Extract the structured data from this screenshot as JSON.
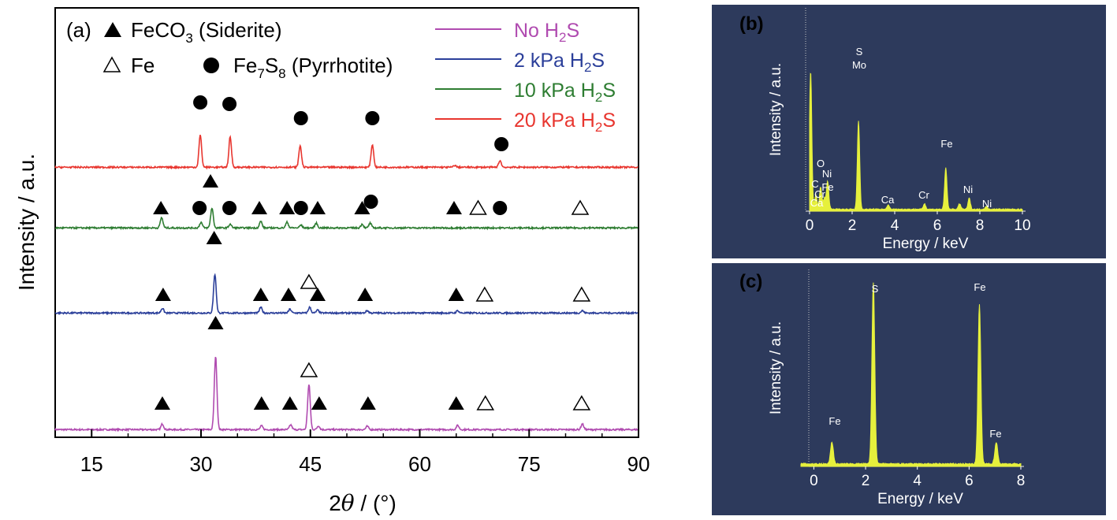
{
  "chart_data": [
    {
      "panel_label": "(a)",
      "type": "line",
      "xlabel_prefix": "2",
      "xlabel_theta": "θ",
      "xlabel_suffix": " / (°)",
      "ylabel": "Intensity / a.u.",
      "xlim": [
        10,
        90
      ],
      "xticks": [
        "15",
        "30",
        "45",
        "60",
        "75",
        "90"
      ],
      "xtick_values": [
        15,
        30,
        45,
        60,
        75,
        90
      ],
      "legend_placement": "top-right",
      "series": [
        {
          "name": "No H₂S",
          "color": "#b04bb0",
          "offset": 0,
          "peaks": [
            [
              24.7,
              12
            ],
            [
              32.0,
              155
            ],
            [
              38.3,
              8
            ],
            [
              42.3,
              10
            ],
            [
              44.8,
              95
            ],
            [
              46.1,
              8
            ],
            [
              52.8,
              7
            ],
            [
              65.2,
              9
            ],
            [
              82.3,
              12
            ]
          ]
        },
        {
          "name": "2 kPa H₂S",
          "color": "#2b3f9a",
          "offset": 1,
          "peaks": [
            [
              24.7,
              10
            ],
            [
              31.9,
              82
            ],
            [
              38.2,
              12
            ],
            [
              42.2,
              8
            ],
            [
              44.9,
              12
            ],
            [
              46.0,
              6
            ],
            [
              52.8,
              5
            ],
            [
              65.2,
              5
            ],
            [
              82.3,
              5
            ]
          ]
        },
        {
          "name": "10 kPa H₂S",
          "color": "#2e7d32",
          "offset": 2,
          "peaks": [
            [
              24.6,
              22
            ],
            [
              30.0,
              12
            ],
            [
              31.5,
              42
            ],
            [
              34.0,
              8
            ],
            [
              38.2,
              14
            ],
            [
              41.8,
              12
            ],
            [
              43.7,
              6
            ],
            [
              45.8,
              10
            ],
            [
              52.1,
              8
            ],
            [
              53.2,
              10
            ]
          ]
        },
        {
          "name": "20 kPa H₂S",
          "color": "#e8362f",
          "offset": 3,
          "peaks": [
            [
              29.9,
              68
            ],
            [
              34.0,
              64
            ],
            [
              43.6,
              46
            ],
            [
              53.5,
              48
            ],
            [
              71.0,
              14
            ],
            [
              64.8,
              4
            ]
          ]
        }
      ],
      "legend_phases": [
        {
          "symbol": "filled-triangle",
          "name": "FeCO",
          "sub": "3",
          "tail": " (Siderite)"
        },
        {
          "symbol": "open-triangle",
          "name": "Fe",
          "sub": "",
          "tail": ""
        },
        {
          "symbol": "filled-circle",
          "name": "Fe",
          "sub": "7",
          "name2": "S",
          "sub2": "8",
          "tail": " (Pyrrhotite)"
        }
      ],
      "markers": [
        {
          "series": 0,
          "x": 24.7,
          "type": "filled-triangle"
        },
        {
          "series": 0,
          "x": 32.0,
          "type": "filled-triangle"
        },
        {
          "series": 0,
          "x": 38.3,
          "type": "filled-triangle"
        },
        {
          "series": 0,
          "x": 42.2,
          "type": "filled-triangle"
        },
        {
          "series": 0,
          "x": 44.8,
          "type": "open-triangle"
        },
        {
          "series": 0,
          "x": 46.2,
          "type": "filled-triangle"
        },
        {
          "series": 0,
          "x": 52.9,
          "type": "filled-triangle"
        },
        {
          "series": 0,
          "x": 65.0,
          "type": "filled-triangle"
        },
        {
          "series": 0,
          "x": 69.0,
          "type": "open-triangle"
        },
        {
          "series": 0,
          "x": 82.2,
          "type": "open-triangle"
        },
        {
          "series": 1,
          "x": 24.8,
          "type": "filled-triangle"
        },
        {
          "series": 1,
          "x": 31.8,
          "type": "filled-triangle"
        },
        {
          "series": 1,
          "x": 38.2,
          "type": "filled-triangle"
        },
        {
          "series": 1,
          "x": 42.0,
          "type": "filled-triangle"
        },
        {
          "series": 1,
          "x": 44.8,
          "type": "open-triangle"
        },
        {
          "series": 1,
          "x": 46.0,
          "type": "filled-triangle"
        },
        {
          "series": 1,
          "x": 52.5,
          "type": "filled-triangle"
        },
        {
          "series": 1,
          "x": 65.0,
          "type": "filled-triangle"
        },
        {
          "series": 1,
          "x": 68.9,
          "type": "open-triangle"
        },
        {
          "series": 1,
          "x": 82.2,
          "type": "open-triangle"
        },
        {
          "series": 2,
          "x": 24.5,
          "type": "filled-triangle"
        },
        {
          "series": 2,
          "x": 29.8,
          "type": "filled-circle"
        },
        {
          "series": 2,
          "x": 31.3,
          "type": "filled-triangle"
        },
        {
          "series": 2,
          "x": 33.9,
          "type": "filled-circle"
        },
        {
          "series": 2,
          "x": 38.0,
          "type": "filled-triangle"
        },
        {
          "series": 2,
          "x": 41.8,
          "type": "filled-triangle"
        },
        {
          "series": 2,
          "x": 43.7,
          "type": "filled-circle"
        },
        {
          "series": 2,
          "x": 46.0,
          "type": "filled-triangle"
        },
        {
          "series": 2,
          "x": 52.1,
          "type": "filled-triangle"
        },
        {
          "series": 2,
          "x": 53.3,
          "type": "filled-circle"
        },
        {
          "series": 2,
          "x": 64.7,
          "type": "filled-triangle"
        },
        {
          "series": 2,
          "x": 68.0,
          "type": "open-triangle"
        },
        {
          "series": 2,
          "x": 71.0,
          "type": "filled-circle"
        },
        {
          "series": 2,
          "x": 82.0,
          "type": "open-triangle"
        },
        {
          "series": 3,
          "x": 29.9,
          "type": "filled-circle"
        },
        {
          "series": 3,
          "x": 33.9,
          "type": "filled-circle"
        },
        {
          "series": 3,
          "x": 43.7,
          "type": "filled-circle"
        },
        {
          "series": 3,
          "x": 53.5,
          "type": "filled-circle"
        },
        {
          "series": 3,
          "x": 71.2,
          "type": "filled-circle"
        }
      ]
    },
    {
      "panel_label": "(b)",
      "type": "line",
      "xlabel": "Energy / keV",
      "ylabel": "Intensity / a.u.",
      "xlim": [
        0,
        10
      ],
      "xticks": [
        "0",
        "2",
        "4",
        "6",
        "8",
        "10"
      ],
      "xtick_values": [
        0,
        2,
        4,
        6,
        8,
        10
      ],
      "color": "#e6f03c",
      "peaks": [
        [
          0.05,
          100
        ],
        [
          0.3,
          10
        ],
        [
          0.52,
          16
        ],
        [
          0.7,
          8
        ],
        [
          0.85,
          20
        ],
        [
          2.3,
          64
        ],
        [
          3.7,
          3
        ],
        [
          5.4,
          4
        ],
        [
          6.4,
          30
        ],
        [
          7.05,
          4
        ],
        [
          7.5,
          8
        ],
        [
          8.3,
          2
        ]
      ],
      "labels": [
        {
          "text": "S",
          "x": 2.3,
          "level": 1
        },
        {
          "text": "Mo",
          "x": 2.3,
          "level": 0
        },
        {
          "text": "Fe",
          "x": 6.4,
          "level": 0
        },
        {
          "text": "O",
          "x": 0.52,
          "level": 3
        },
        {
          "text": "Ni",
          "x": 0.85,
          "level": 2
        },
        {
          "text": "C",
          "x": 0.3,
          "level": 1
        },
        {
          "text": "Fe",
          "x": 0.85,
          "level": 1
        },
        {
          "text": "Cr",
          "x": 0.55,
          "level": 0
        },
        {
          "text": "Ca",
          "x": 0.4,
          "level": -1
        },
        {
          "text": "Ca",
          "x": 3.7,
          "level": 0
        },
        {
          "text": "Cr",
          "x": 5.4,
          "level": 0
        },
        {
          "text": "Ni",
          "x": 7.5,
          "level": 0
        },
        {
          "text": "Ni",
          "x": 8.3,
          "level": 0
        }
      ]
    },
    {
      "panel_label": "(c)",
      "type": "line",
      "xlabel": "Energy / keV",
      "ylabel": "Intensity / a.u.",
      "xlim": [
        -0.5,
        8
      ],
      "xticks": [
        "0",
        "2",
        "4",
        "6",
        "8"
      ],
      "xtick_values": [
        0,
        2,
        4,
        6,
        8
      ],
      "color": "#e6f03c",
      "peaks": [
        [
          0.7,
          12
        ],
        [
          2.3,
          100
        ],
        [
          6.4,
          88
        ],
        [
          7.05,
          12
        ]
      ],
      "labels": [
        {
          "text": "Fe",
          "x": 0.7
        },
        {
          "text": "S",
          "x": 2.3
        },
        {
          "text": "Fe",
          "x": 6.4
        },
        {
          "text": "Fe",
          "x": 7.05
        }
      ]
    }
  ]
}
